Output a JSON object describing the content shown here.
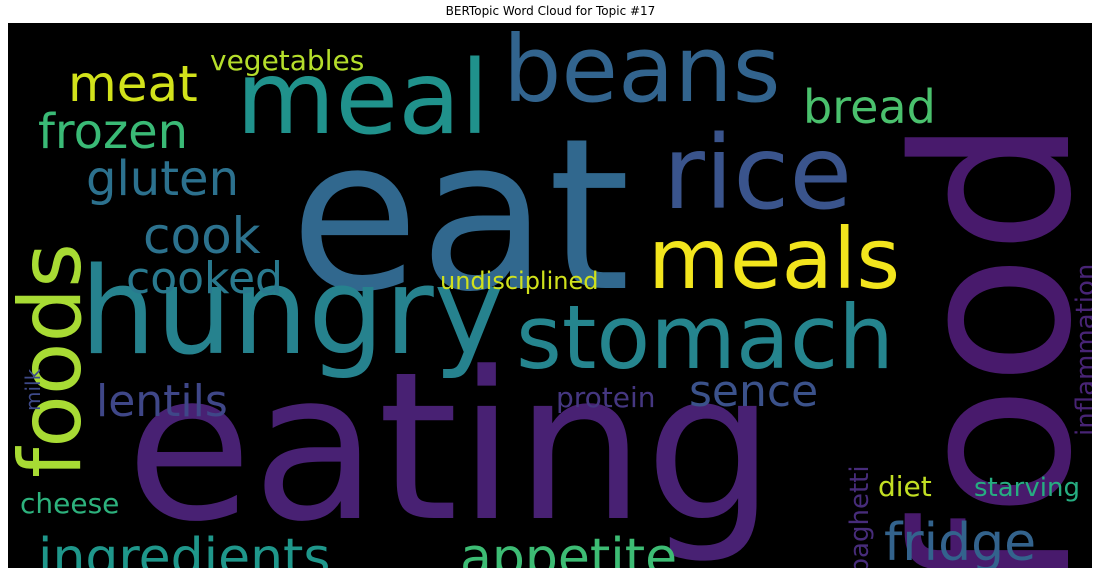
{
  "title": "BERTopic Word Cloud for Topic #17",
  "chart_data": {
    "type": "wordcloud",
    "title": "BERTopic Word Cloud for Topic #17",
    "background": "#000000",
    "colormap": "viridis",
    "words": [
      {
        "text": "eating",
        "color": "#482173"
      },
      {
        "text": "food",
        "color": "#481a6c"
      },
      {
        "text": "eat",
        "color": "#31688e"
      },
      {
        "text": "hungry",
        "color": "#26828e"
      },
      {
        "text": "stomach",
        "color": "#25858e"
      },
      {
        "text": "meal",
        "color": "#20928c"
      },
      {
        "text": "beans",
        "color": "#32648e"
      },
      {
        "text": "rice",
        "color": "#3a548c"
      },
      {
        "text": "meals",
        "color": "#f2e51d"
      },
      {
        "text": "foods",
        "color": "#a8db34"
      },
      {
        "text": "ingredients",
        "color": "#1f978b"
      },
      {
        "text": "appetite",
        "color": "#3dbc74"
      },
      {
        "text": "fridge",
        "color": "#33638d"
      },
      {
        "text": "frozen",
        "color": "#3aba76"
      },
      {
        "text": "meat",
        "color": "#d2e21b"
      },
      {
        "text": "bread",
        "color": "#4ac16d"
      },
      {
        "text": "gluten",
        "color": "#2c718e"
      },
      {
        "text": "cook",
        "color": "#2c728e"
      },
      {
        "text": "cooked",
        "color": "#29798e"
      },
      {
        "text": "lentils",
        "color": "#3f4788"
      },
      {
        "text": "sence",
        "color": "#3b528b"
      },
      {
        "text": "vegetables",
        "color": "#b5de2b"
      },
      {
        "text": "undisciplined",
        "color": "#d0e11c"
      },
      {
        "text": "cheese",
        "color": "#2db27d"
      },
      {
        "text": "protein",
        "color": "#453781"
      },
      {
        "text": "diet",
        "color": "#c2df23"
      },
      {
        "text": "starving",
        "color": "#26ad81"
      },
      {
        "text": "spaghetti",
        "color": "#472c7a"
      },
      {
        "text": "inflammation",
        "color": "#482475"
      },
      {
        "text": "milk",
        "color": "#3e4a89"
      }
    ]
  }
}
